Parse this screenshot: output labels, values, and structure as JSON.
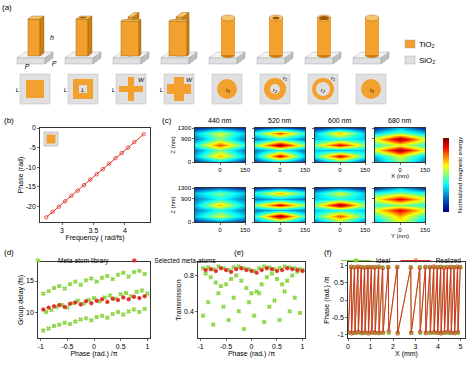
{
  "panel_a": {
    "panel": "(a)",
    "dimensions": {
      "height": "h",
      "period": "P"
    },
    "top_views": [
      [
        "L"
      ],
      [
        "L",
        "L"
      ],
      [
        "W",
        "L"
      ],
      [
        "W",
        "L"
      ],
      [
        "r₁"
      ],
      [
        "r₁",
        "r₂"
      ],
      [
        "r₁",
        "r₂"
      ],
      [
        "r₁"
      ]
    ],
    "legend": [
      {
        "name": "TiO₂",
        "color": "#f2a12e"
      },
      {
        "name": "SiO₂",
        "color": "#e0e0e0"
      }
    ]
  },
  "chart_data": [
    {
      "panel": "(b)",
      "type": "line",
      "xlabel": "Frequency ( rad/fs)",
      "ylabel": "Phase (rad)",
      "x": [
        2.75,
        2.85,
        2.95,
        3.05,
        3.15,
        3.25,
        3.35,
        3.45,
        3.55,
        3.65,
        3.75,
        3.85,
        3.95,
        4.05,
        4.15,
        4.3
      ],
      "series": [
        {
          "color": "#e0302a",
          "marker": "circle-open",
          "line_style": "solid",
          "values": [
            -22.8,
            -21.4,
            -20.1,
            -18.7,
            -17.3,
            -16.0,
            -14.6,
            -13.2,
            -11.8,
            -10.5,
            -9.1,
            -7.7,
            -6.4,
            -5.0,
            -3.6,
            -1.6
          ]
        }
      ],
      "xlim": [
        2.65,
        4.4
      ],
      "xticks": [
        3,
        3.5,
        4
      ],
      "ylim": [
        -24,
        0
      ],
      "yticks": [
        -20,
        -15,
        -10,
        -5,
        0
      ]
    },
    {
      "panel": "(c)",
      "type": "heatmap",
      "columns": [
        "440 nm",
        "520 nm",
        "600 nm",
        "680 nm"
      ],
      "xlabels": [
        "X (nm)",
        "Y (nm)"
      ],
      "ylabel": "Z (nm)",
      "x": [
        -150,
        0,
        150
      ],
      "y": [
        0,
        220,
        440,
        660,
        880,
        1100,
        1300
      ],
      "cells": [
        [
          [
            [
              0.1,
              0.3,
              0.1
            ],
            [
              0.3,
              0.7,
              0.3
            ],
            [
              0.2,
              0.5,
              0.2
            ],
            [
              0.4,
              0.8,
              0.4
            ],
            [
              0.2,
              0.5,
              0.2
            ],
            [
              0.3,
              0.6,
              0.3
            ],
            [
              0.1,
              0.2,
              0.1
            ]
          ],
          [
            [
              0.1,
              0.3,
              0.1
            ],
            [
              0.3,
              0.9,
              0.3
            ],
            [
              0.2,
              0.4,
              0.2
            ],
            [
              0.5,
              1.0,
              0.5
            ],
            [
              0.2,
              0.4,
              0.2
            ],
            [
              0.4,
              0.8,
              0.4
            ],
            [
              0.1,
              0.2,
              0.1
            ]
          ],
          [
            [
              0.1,
              0.4,
              0.1
            ],
            [
              0.4,
              0.9,
              0.4
            ],
            [
              0.3,
              0.3,
              0.3
            ],
            [
              0.5,
              0.9,
              0.5
            ],
            [
              0.3,
              0.4,
              0.3
            ],
            [
              0.3,
              0.7,
              0.3
            ],
            [
              0.1,
              0.2,
              0.1
            ]
          ],
          [
            [
              0.2,
              0.5,
              0.2
            ],
            [
              0.3,
              0.6,
              0.3
            ],
            [
              0.6,
              1.0,
              0.6
            ],
            [
              0.4,
              0.6,
              0.4
            ],
            [
              0.6,
              1.0,
              0.6
            ],
            [
              0.3,
              0.5,
              0.3
            ],
            [
              0.1,
              0.3,
              0.1
            ]
          ]
        ],
        [
          [
            [
              0.1,
              0.2,
              0.1
            ],
            [
              0.3,
              0.6,
              0.3
            ],
            [
              0.2,
              0.4,
              0.2
            ],
            [
              0.3,
              0.7,
              0.3
            ],
            [
              0.2,
              0.4,
              0.2
            ],
            [
              0.3,
              0.5,
              0.3
            ],
            [
              0.1,
              0.2,
              0.1
            ]
          ],
          [
            [
              0.2,
              0.4,
              0.2
            ],
            [
              0.4,
              1.0,
              0.4
            ],
            [
              0.2,
              0.3,
              0.2
            ],
            [
              0.5,
              0.9,
              0.5
            ],
            [
              0.2,
              0.3,
              0.2
            ],
            [
              0.4,
              0.7,
              0.4
            ],
            [
              0.1,
              0.2,
              0.1
            ]
          ],
          [
            [
              0.2,
              0.5,
              0.2
            ],
            [
              0.4,
              0.8,
              0.4
            ],
            [
              0.3,
              0.4,
              0.3
            ],
            [
              0.5,
              1.0,
              0.5
            ],
            [
              0.3,
              0.4,
              0.3
            ],
            [
              0.3,
              0.6,
              0.3
            ],
            [
              0.1,
              0.2,
              0.1
            ]
          ],
          [
            [
              0.3,
              0.6,
              0.3
            ],
            [
              0.4,
              0.7,
              0.4
            ],
            [
              0.6,
              0.9,
              0.6
            ],
            [
              0.4,
              0.5,
              0.4
            ],
            [
              0.6,
              0.9,
              0.6
            ],
            [
              0.4,
              0.5,
              0.4
            ],
            [
              0.1,
              0.3,
              0.1
            ]
          ]
        ]
      ],
      "xlim": [
        -150,
        150
      ],
      "xticks": [
        0,
        150
      ],
      "ylim": [
        0,
        1300
      ],
      "yticks": [
        0,
        900,
        1300
      ],
      "colorbar": {
        "title": "Normalized magnetic energy",
        "range": [
          0,
          1
        ]
      }
    },
    {
      "panel": "(d)",
      "type": "scatter",
      "xlabel": "Phase (rad.) /π",
      "ylabel": "Group delay (fs)",
      "legend": "top",
      "series": [
        {
          "name": "Meta-atom library",
          "color": "#8cd444",
          "marker": "cross",
          "x": [
            -0.95,
            -0.85,
            -0.75,
            -0.65,
            -0.55,
            -0.45,
            -0.35,
            -0.25,
            -0.15,
            -0.05,
            0.05,
            0.15,
            0.25,
            0.35,
            0.45,
            0.55,
            0.65,
            0.75,
            0.85,
            0.95,
            -0.9,
            -0.8,
            -0.7,
            -0.6,
            -0.5,
            -0.4,
            -0.3,
            -0.2,
            -0.1,
            0,
            0.1,
            0.2,
            0.3,
            0.4,
            0.5,
            0.6,
            0.7,
            0.8,
            0.9,
            1,
            -0.95,
            -0.85,
            -0.75,
            -0.65,
            -0.55,
            -0.45,
            -0.35,
            -0.25,
            -0.15,
            -0.05,
            0.05,
            0.15,
            0.25,
            0.35,
            0.45,
            0.55,
            0.65,
            0.75,
            0.85,
            0.95
          ],
          "values": [
            7.2,
            7.5,
            7.9,
            8.1,
            8.4,
            8.2,
            8.6,
            8.9,
            9.1,
            8.8,
            9.3,
            9.5,
            9.2,
            9.8,
            10.1,
            9.7,
            10.2,
            10.5,
            10.1,
            10.6,
            10.1,
            10.4,
            10.9,
            11.2,
            10.8,
            11.5,
            11.9,
            11.4,
            12.0,
            12.3,
            11.8,
            12.4,
            12.7,
            12.2,
            12.9,
            13.1,
            12.6,
            13.3,
            13.5,
            13.0,
            13.0,
            13.4,
            13.9,
            14.2,
            13.8,
            14.5,
            14.9,
            14.4,
            15.1,
            15.4,
            14.9,
            15.5,
            15.8,
            15.3,
            16.0,
            16.3,
            15.7,
            16.4,
            16.6,
            16.1
          ]
        },
        {
          "name": "Selected meta-atoms",
          "color": "#e0302a",
          "marker": "dot",
          "x": [
            -0.95,
            -0.85,
            -0.75,
            -0.65,
            -0.55,
            -0.45,
            -0.35,
            -0.25,
            -0.15,
            -0.05,
            0.05,
            0.15,
            0.25,
            0.35,
            0.45,
            0.55,
            0.65,
            0.75,
            0.85,
            0.95
          ],
          "values": [
            10.5,
            10.8,
            11.0,
            11.2,
            10.9,
            11.4,
            11.6,
            11.3,
            11.8,
            11.5,
            11.9,
            12.1,
            11.7,
            12.2,
            12.0,
            12.4,
            12.1,
            12.5,
            12.3,
            12.6
          ]
        }
      ],
      "xlim": [
        -1.05,
        1.05
      ],
      "xticks": [
        -1,
        -0.5,
        0,
        0.5,
        1
      ],
      "ylim": [
        6,
        18
      ],
      "yticks": [
        10,
        15
      ]
    },
    {
      "panel": "(e)",
      "type": "scatter",
      "xlabel": "Phase (rad.) /π",
      "ylabel": "Transmission",
      "series": [
        {
          "name": "Meta-atom library",
          "color": "#8cd444",
          "marker": "cross",
          "x": [
            -0.95,
            -0.85,
            -0.75,
            -0.65,
            -0.55,
            -0.45,
            -0.35,
            -0.25,
            -0.15,
            -0.05,
            0.05,
            0.15,
            0.25,
            0.35,
            0.45,
            0.55,
            0.65,
            0.75,
            0.85,
            0.95,
            -0.9,
            -0.8,
            -0.7,
            -0.6,
            -0.5,
            -0.4,
            -0.3,
            -0.2,
            -0.1,
            0,
            0.1,
            0.2,
            0.3,
            0.4,
            0.5,
            0.6,
            0.7,
            0.8,
            0.9,
            1,
            -0.95,
            -0.85,
            -0.75,
            -0.65,
            -0.55,
            -0.45,
            -0.35,
            -0.25,
            -0.15,
            -0.05,
            0.05,
            0.15,
            0.25,
            0.35,
            0.45,
            0.55,
            0.65,
            0.75,
            0.85,
            0.95
          ],
          "values": [
            0.88,
            0.89,
            0.87,
            0.9,
            0.88,
            0.86,
            0.89,
            0.9,
            0.88,
            0.87,
            0.85,
            0.88,
            0.9,
            0.89,
            0.87,
            0.88,
            0.9,
            0.89,
            0.88,
            0.87,
            0.82,
            0.78,
            0.72,
            0.68,
            0.7,
            0.76,
            0.8,
            0.74,
            0.66,
            0.6,
            0.62,
            0.7,
            0.78,
            0.82,
            0.76,
            0.7,
            0.74,
            0.8,
            0.84,
            0.86,
            0.35,
            0.5,
            0.25,
            0.6,
            0.45,
            0.3,
            0.55,
            0.4,
            0.2,
            0.5,
            0.35,
            0.6,
            0.28,
            0.45,
            0.52,
            0.3,
            0.62,
            0.4,
            0.55,
            0.38
          ]
        },
        {
          "name": "Selected meta-atoms",
          "color": "#e0302a",
          "marker": "dot",
          "x": [
            -0.9,
            -0.8,
            -0.7,
            -0.6,
            -0.5,
            -0.4,
            -0.3,
            -0.2,
            -0.1,
            0,
            0.1,
            0.2,
            0.3,
            0.4,
            0.5,
            0.6,
            0.7,
            0.8,
            0.9,
            1
          ],
          "values": [
            0.86,
            0.87,
            0.85,
            0.88,
            0.86,
            0.84,
            0.87,
            0.88,
            0.86,
            0.85,
            0.83,
            0.86,
            0.88,
            0.87,
            0.85,
            0.86,
            0.88,
            0.87,
            0.86,
            0.85
          ]
        }
      ],
      "xlim": [
        -1.05,
        1.05
      ],
      "xticks": [
        -1,
        -0.5,
        0,
        0.5,
        1
      ],
      "ylim": [
        0.1,
        0.95
      ],
      "yticks": [
        0.4,
        0.8
      ]
    },
    {
      "panel": "(f)",
      "type": "line",
      "xlabel": "X (mm)",
      "ylabel": "Phase (rad.) /π",
      "legend": "top",
      "x": [
        0.01,
        0.14,
        0.16,
        0.29,
        0.31,
        0.44,
        0.46,
        0.59,
        0.61,
        0.74,
        0.76,
        0.89,
        0.91,
        1.04,
        1.06,
        1.19,
        1.21,
        1.36,
        1.38,
        1.54,
        1.56,
        1.79,
        1.81,
        2.19,
        2.21,
        2.79,
        2.81,
        3.19,
        3.21,
        3.44,
        3.46,
        3.64,
        3.66,
        3.81,
        3.83,
        3.97,
        3.99,
        4.12,
        4.14,
        4.27,
        4.29,
        4.42,
        4.44,
        4.57,
        4.59,
        4.72,
        4.74,
        4.87,
        4.89,
        4.99
      ],
      "series": [
        {
          "name": "Ideal",
          "color": "#7ccf3a",
          "marker": "cross",
          "line_style": "solid",
          "values": [
            -0.95,
            0.95,
            -0.95,
            0.95,
            -0.95,
            0.95,
            -0.95,
            0.95,
            -0.95,
            0.95,
            -0.95,
            0.95,
            -0.95,
            0.95,
            -0.95,
            0.95,
            -0.95,
            0.95,
            -0.95,
            0.95,
            -0.95,
            0.95,
            -0.95,
            0.95,
            -0.95,
            0.95,
            -0.95,
            0.95,
            -0.95,
            0.95,
            -0.95,
            0.95,
            -0.95,
            0.95,
            -0.95,
            0.95,
            -0.95,
            0.95,
            -0.95,
            0.95,
            -0.95,
            0.95,
            -0.95,
            0.95,
            -0.95,
            0.95,
            -0.95,
            0.95,
            -0.95,
            0.95
          ]
        },
        {
          "name": "Realized",
          "color": "#e0302a",
          "marker": "circle-open",
          "line_style": "solid",
          "values": [
            -0.93,
            0.96,
            -0.97,
            0.94,
            -0.95,
            0.97,
            -0.92,
            0.95,
            -0.96,
            0.93,
            -0.94,
            0.96,
            -0.97,
            0.95,
            -0.93,
            0.94,
            -0.95,
            0.97,
            -0.96,
            0.92,
            -0.94,
            0.95,
            -0.9,
            0.96,
            -0.97,
            0.94,
            -0.95,
            0.93,
            -0.92,
            0.96,
            -0.96,
            0.95,
            -0.94,
            0.97,
            -0.93,
            0.94,
            -0.95,
            0.96,
            -0.97,
            0.93,
            -0.94,
            0.95,
            -0.92,
            0.96,
            -0.95,
            0.94,
            -0.96,
            0.97,
            -0.93,
            0.95
          ]
        }
      ],
      "xlim": [
        0,
        5.2
      ],
      "xticks": [
        0,
        1,
        2,
        3,
        4,
        5
      ],
      "ylim": [
        -1.1,
        1.1
      ],
      "yticks": [
        -1,
        -0.5,
        0,
        0.5,
        1
      ]
    }
  ]
}
